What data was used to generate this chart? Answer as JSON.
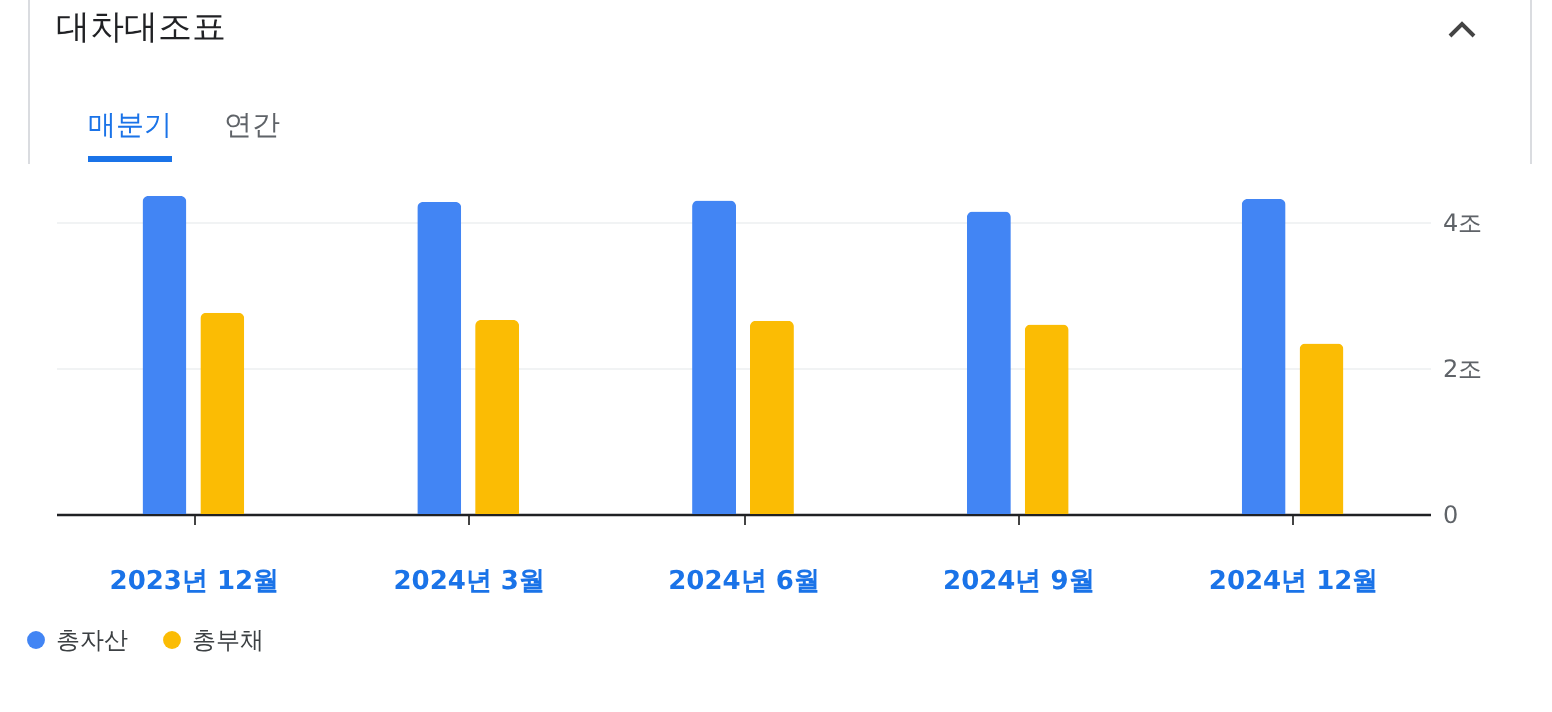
{
  "chart_data": {
    "type": "bar",
    "title": "대차대조표",
    "annotations": [
      "매분기",
      "연간"
    ],
    "categories": [
      "2023년 12월",
      "2024년 3월",
      "2024년 6월",
      "2024년 9월",
      "2024년 12월"
    ],
    "series": [
      {
        "name": "총자산",
        "color": "#4285f4",
        "values": [
          4.36,
          4.28,
          4.3,
          4.15,
          4.32
        ]
      },
      {
        "name": "총부채",
        "color": "#fbbc04",
        "values": [
          2.76,
          2.66,
          2.65,
          2.6,
          2.34
        ]
      }
    ],
    "ylim": [
      0,
      4.8
    ],
    "yticks": [
      0,
      {
        "value": 2,
        "label": "2조"
      },
      {
        "value": 4,
        "label": "4조"
      }
    ],
    "grid": "y",
    "legend": "bottom left"
  }
}
